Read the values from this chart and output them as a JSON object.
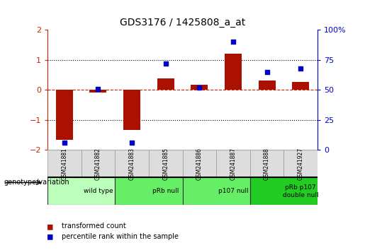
{
  "title": "GDS3176 / 1425808_a_at",
  "samples": [
    "GSM241881",
    "GSM241882",
    "GSM241883",
    "GSM241885",
    "GSM241886",
    "GSM241887",
    "GSM241888",
    "GSM241927"
  ],
  "bar_values": [
    -1.65,
    -0.08,
    -1.32,
    0.38,
    0.18,
    1.2,
    0.32,
    0.28
  ],
  "dot_values": [
    6,
    51,
    6,
    72,
    52,
    90,
    65,
    68
  ],
  "groups": [
    {
      "label": "wild type",
      "start": 0,
      "end": 2,
      "color": "#bbffbb"
    },
    {
      "label": "pRb null",
      "start": 2,
      "end": 4,
      "color": "#66ee66"
    },
    {
      "label": "p107 null",
      "start": 4,
      "end": 6,
      "color": "#66ee66"
    },
    {
      "label": "pRb p107\ndouble null",
      "start": 6,
      "end": 8,
      "color": "#22cc22"
    }
  ],
  "ylim_left": [
    -2,
    2
  ],
  "ylim_right": [
    0,
    100
  ],
  "bar_color": "#aa1100",
  "dot_color": "#0000cc",
  "zero_line_color": "#cc2200",
  "bg_color": "#ffffff",
  "left_axis_color": "#cc2200",
  "right_axis_color": "#0000cc",
  "legend_bar_label": "transformed count",
  "legend_dot_label": "percentile rank within the sample"
}
